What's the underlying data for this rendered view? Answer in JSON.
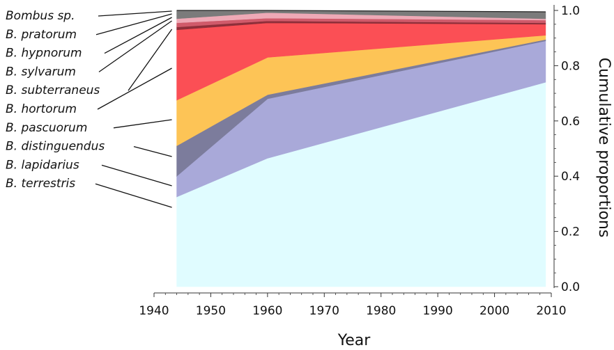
{
  "chart_data": {
    "type": "area",
    "stacked": true,
    "xlabel": "Year",
    "ylabel": "Cumulative proportions",
    "x": [
      1944,
      1960,
      2009
    ],
    "xlim": [
      1940,
      2010
    ],
    "xticks": [
      "1940",
      "1950",
      "1960",
      "1970",
      "1980",
      "1990",
      "2000",
      "2010"
    ],
    "ylim": [
      0,
      1
    ],
    "yticks": [
      "0.0",
      "0.2",
      "0.4",
      "0.6",
      "0.8",
      "1.0"
    ],
    "grid": false,
    "legend_position": "left",
    "series": [
      {
        "name": "B. terrestris",
        "values": [
          0.325,
          0.465,
          0.74
        ],
        "color": "#e0fcff"
      },
      {
        "name": "B. lapidarius",
        "values": [
          0.075,
          0.215,
          0.15
        ],
        "color": "#a9a9d9"
      },
      {
        "name": "B. distinguendus",
        "values": [
          0.11,
          0.015,
          0.005
        ],
        "color": "#7c7c9c"
      },
      {
        "name": "B. pascuorum",
        "values": [
          0.165,
          0.135,
          0.015
        ],
        "color": "#fdc456"
      },
      {
        "name": "B. hortorum",
        "values": [
          0.255,
          0.125,
          0.04
        ],
        "color": "#fb4f55"
      },
      {
        "name": "B. subterraneus",
        "values": [
          0.01,
          0.007,
          0.005
        ],
        "color": "#8e2f3a"
      },
      {
        "name": "B. sylvarum",
        "values": [
          0.015,
          0.01,
          0.01
        ],
        "color": "#d05a6a"
      },
      {
        "name": "B. hypnorum",
        "values": [
          0.0,
          0.0,
          0.0
        ],
        "color": "#b84a5a"
      },
      {
        "name": "B. pratorum",
        "values": [
          0.015,
          0.02,
          0.005
        ],
        "color": "#eea9b6"
      },
      {
        "name": "Bombus sp.",
        "values": [
          0.03,
          0.008,
          0.025
        ],
        "color": "#7b7b7b"
      }
    ],
    "legend_order": [
      "Bombus sp.",
      "B. pratorum",
      "B. hypnorum",
      "B. sylvarum",
      "B. subterraneus",
      "B. hortorum",
      "B. pascuorum",
      "B. distinguendus",
      "B. lapidarius",
      "B. terrestris"
    ]
  }
}
